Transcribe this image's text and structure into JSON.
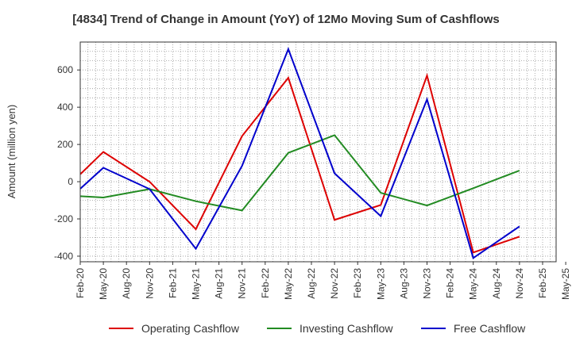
{
  "chart_data": {
    "type": "line",
    "title": "[4834]  Trend of Change in Amount (YoY) of 12Mo Moving Sum of Cashflows",
    "xlabel": "",
    "ylabel": "Amount (million yen)",
    "ylim": [
      -430,
      750
    ],
    "yticks": [
      600,
      400,
      200,
      0,
      -200,
      -400
    ],
    "grid": true,
    "legend_position": "bottom",
    "categories": [
      "Feb-20",
      "May-20",
      "Aug-20",
      "Nov-20",
      "Feb-21",
      "May-21",
      "Aug-21",
      "Nov-21",
      "Feb-22",
      "May-22",
      "Aug-22",
      "Nov-22",
      "Feb-23",
      "May-23",
      "Aug-23",
      "Nov-23",
      "Feb-24",
      "May-24",
      "Aug-24",
      "Nov-24",
      "Feb-25",
      "May-25"
    ],
    "series": [
      {
        "name": "Operating Cashflow",
        "color": "#dd0000",
        "values": [
          40,
          160,
          null,
          0,
          null,
          -255,
          null,
          245,
          null,
          558,
          null,
          -205,
          null,
          -125,
          null,
          570,
          null,
          -380,
          null,
          -295,
          null,
          null
        ]
      },
      {
        "name": "Investing Cashflow",
        "color": "#228b22",
        "values": [
          -78,
          -85,
          null,
          -40,
          null,
          -105,
          null,
          -155,
          null,
          155,
          null,
          250,
          null,
          -60,
          null,
          -128,
          null,
          -35,
          null,
          60,
          null,
          null
        ]
      },
      {
        "name": "Free Cashflow",
        "color": "#0000cc",
        "values": [
          -38,
          75,
          null,
          -40,
          null,
          -360,
          null,
          85,
          null,
          712,
          null,
          45,
          null,
          -185,
          null,
          442,
          null,
          -410,
          null,
          -240,
          null,
          null
        ]
      }
    ]
  }
}
